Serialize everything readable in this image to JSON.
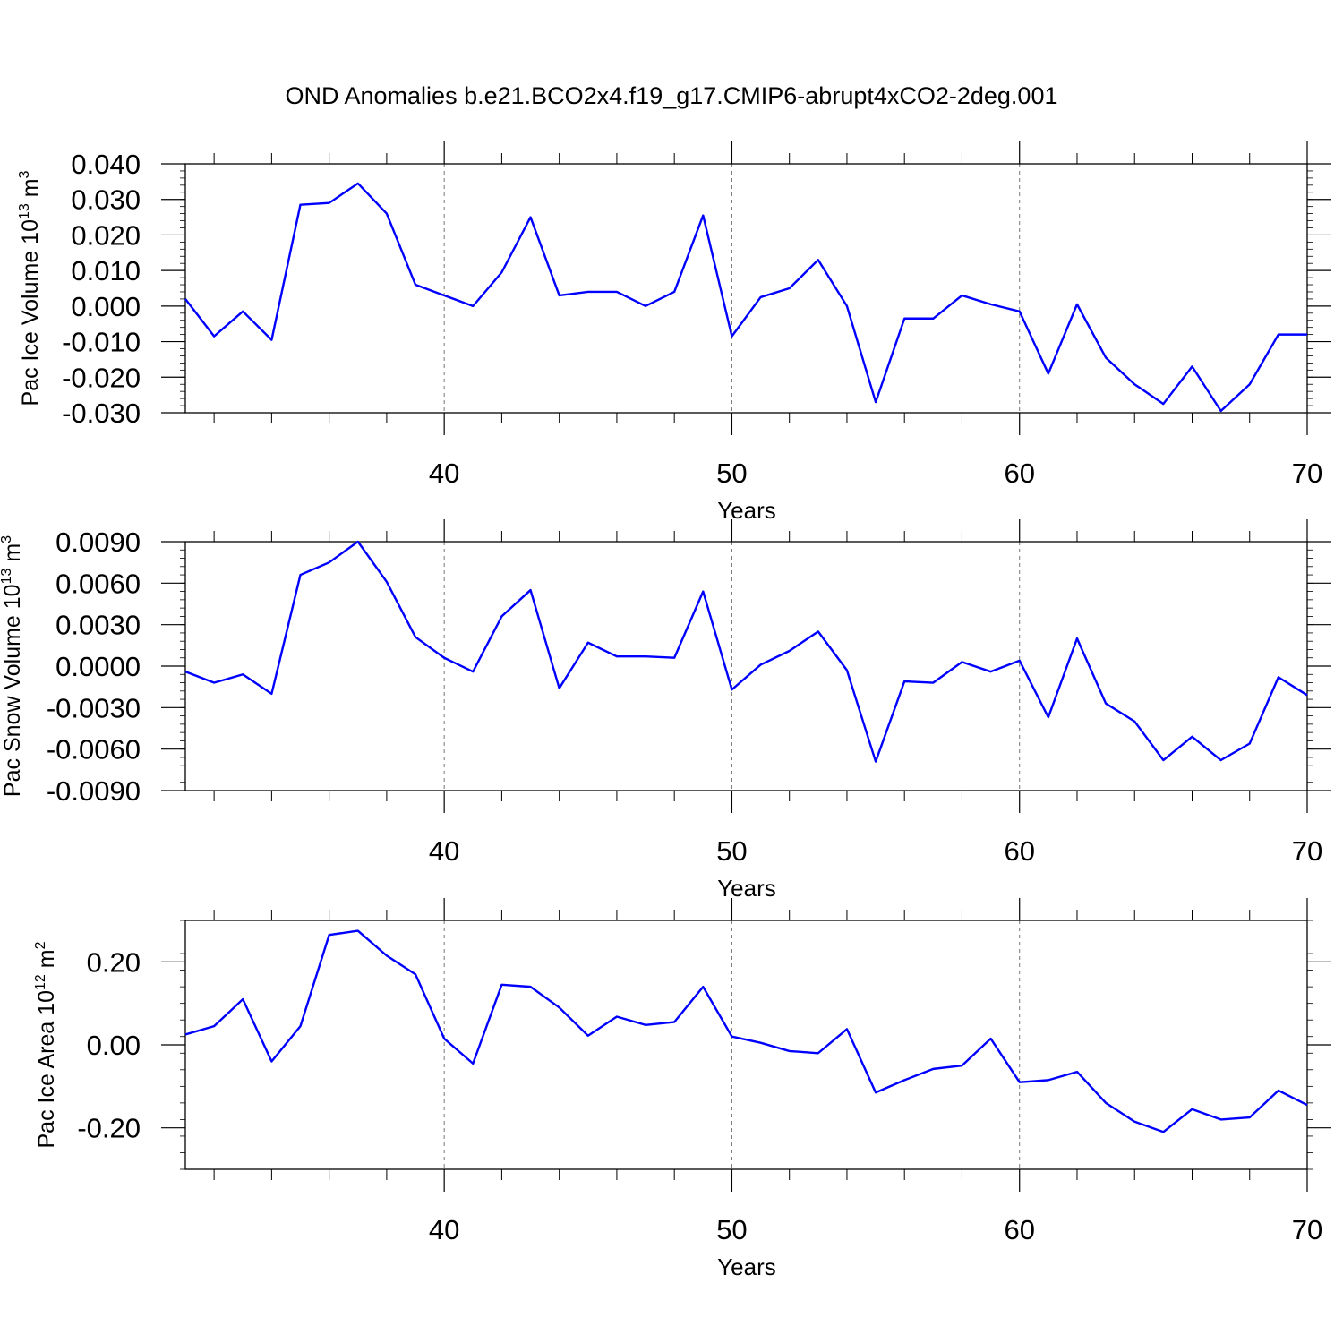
{
  "title": "OND Anomalies b.e21.BCO2x4.f19_g17.CMIP6-abrupt4xCO2-2deg.001",
  "line_color": "#0000ff",
  "chart_data": [
    {
      "type": "line",
      "ylabel": "Pac Ice Volume 10",
      "ylabel_exp": "13",
      "ylabel_unit": " m",
      "ylabel_unit_exp": "3",
      "xlabel": "Years",
      "xlim": [
        31,
        70
      ],
      "ylim": [
        -0.03,
        0.04
      ],
      "xticks": [
        40,
        50,
        60,
        70
      ],
      "xtick_labels": [
        "40",
        "50",
        "60",
        "70"
      ],
      "yticks": [
        -0.03,
        -0.02,
        -0.01,
        0.0,
        0.01,
        0.02,
        0.03,
        0.04
      ],
      "ytick_labels": [
        "-0.030",
        "-0.020",
        "-0.010",
        "0.000",
        "0.010",
        "0.020",
        "0.030",
        "0.040"
      ],
      "x": [
        31,
        32,
        33,
        34,
        35,
        36,
        37,
        38,
        39,
        40,
        41,
        42,
        43,
        44,
        45,
        46,
        47,
        48,
        49,
        50,
        51,
        52,
        53,
        54,
        55,
        56,
        57,
        58,
        59,
        60,
        61,
        62,
        63,
        64,
        65,
        66,
        67,
        68,
        69,
        70
      ],
      "series": [
        {
          "values": [
            0.002,
            -0.0085,
            -0.0015,
            -0.0095,
            0.0285,
            0.029,
            0.0345,
            0.026,
            0.006,
            0.003,
            0.0,
            0.0095,
            0.025,
            0.003,
            0.004,
            0.004,
            0.0,
            0.004,
            0.0255,
            -0.0085,
            0.0025,
            0.005,
            0.013,
            0.0,
            -0.027,
            -0.0035,
            -0.0035,
            0.003,
            0.0005,
            -0.0015,
            -0.019,
            0.0005,
            -0.0145,
            -0.022,
            -0.0275,
            -0.017,
            -0.0295,
            -0.022,
            -0.008,
            -0.008
          ]
        }
      ]
    },
    {
      "type": "line",
      "ylabel": "Pac Snow Volume 10",
      "ylabel_exp": "13",
      "ylabel_unit": " m",
      "ylabel_unit_exp": "3",
      "xlabel": "Years",
      "xlim": [
        31,
        70
      ],
      "ylim": [
        -0.009,
        0.009
      ],
      "xticks": [
        40,
        50,
        60,
        70
      ],
      "xtick_labels": [
        "40",
        "50",
        "60",
        "70"
      ],
      "yticks": [
        -0.009,
        -0.006,
        -0.003,
        0.0,
        0.003,
        0.006,
        0.009
      ],
      "ytick_labels": [
        "-0.0090",
        "-0.0060",
        "-0.0030",
        "0.0000",
        "0.0030",
        "0.0060",
        "0.0090"
      ],
      "x": [
        31,
        32,
        33,
        34,
        35,
        36,
        37,
        38,
        39,
        40,
        41,
        42,
        43,
        44,
        45,
        46,
        47,
        48,
        49,
        50,
        51,
        52,
        53,
        54,
        55,
        56,
        57,
        58,
        59,
        60,
        61,
        62,
        63,
        64,
        65,
        66,
        67,
        68,
        69,
        70
      ],
      "series": [
        {
          "values": [
            -0.0004,
            -0.0012,
            -0.0006,
            -0.002,
            0.0066,
            0.0075,
            0.009,
            0.0061,
            0.0021,
            0.0006,
            -0.0004,
            0.0036,
            0.0055,
            -0.0016,
            0.0017,
            0.0007,
            0.0007,
            0.0006,
            0.0054,
            -0.0017,
            0.0001,
            0.0011,
            0.0025,
            -0.0003,
            -0.0069,
            -0.0011,
            -0.0012,
            0.0003,
            -0.0004,
            0.0004,
            -0.0037,
            0.002,
            -0.0027,
            -0.004,
            -0.0068,
            -0.0051,
            -0.0068,
            -0.0056,
            -0.0008,
            -0.0021
          ]
        }
      ]
    },
    {
      "type": "line",
      "ylabel": "Pac Ice Area 10",
      "ylabel_exp": "12",
      "ylabel_unit": " m",
      "ylabel_unit_exp": "2",
      "xlabel": "Years",
      "xlim": [
        31,
        70
      ],
      "ylim": [
        -0.3,
        0.3
      ],
      "xticks": [
        40,
        50,
        60,
        70
      ],
      "xtick_labels": [
        "40",
        "50",
        "60",
        "70"
      ],
      "yticks": [
        -0.2,
        0.0,
        0.2
      ],
      "ytick_labels": [
        "-0.20",
        "0.00",
        "0.20"
      ],
      "x": [
        31,
        32,
        33,
        34,
        35,
        36,
        37,
        38,
        39,
        40,
        41,
        42,
        43,
        44,
        45,
        46,
        47,
        48,
        49,
        50,
        51,
        52,
        53,
        54,
        55,
        56,
        57,
        58,
        59,
        60,
        61,
        62,
        63,
        64,
        65,
        66,
        67,
        68,
        69,
        70
      ],
      "series": [
        {
          "values": [
            0.025,
            0.045,
            0.11,
            -0.04,
            0.045,
            0.265,
            0.275,
            0.215,
            0.17,
            0.015,
            -0.045,
            0.145,
            0.14,
            0.09,
            0.022,
            0.068,
            0.048,
            0.055,
            0.14,
            0.02,
            0.005,
            -0.015,
            -0.02,
            0.038,
            -0.115,
            -0.085,
            -0.058,
            -0.05,
            0.015,
            -0.09,
            -0.085,
            -0.065,
            -0.14,
            -0.185,
            -0.21,
            -0.155,
            -0.18,
            -0.175,
            -0.11,
            -0.145
          ]
        }
      ]
    }
  ]
}
